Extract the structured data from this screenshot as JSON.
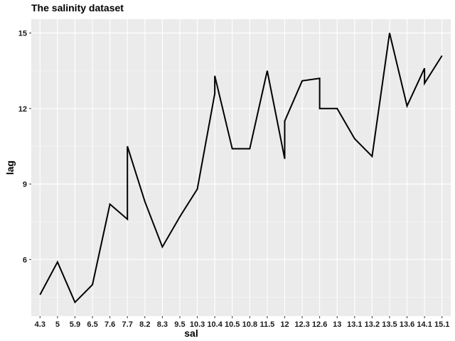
{
  "chart_data": {
    "type": "line",
    "title": "The salinity dataset",
    "xlabel": "sal",
    "ylabel": "lag",
    "categories": [
      "4.3",
      "5",
      "5.9",
      "6.5",
      "7.6",
      "7.7",
      "8.2",
      "8.3",
      "9.5",
      "10.3",
      "10.4",
      "10.5",
      "10.8",
      "11.5",
      "12",
      "12.3",
      "12.6",
      "13",
      "13.1",
      "13.2",
      "13.5",
      "13.6",
      "14.1",
      "15.1"
    ],
    "y_ticks": [
      6,
      9,
      12,
      15
    ],
    "ylim": [
      3.75,
      15.55
    ],
    "grid": true,
    "series": [
      {
        "color": "#000000",
        "points": [
          {
            "x": "4.3",
            "y": 4.6
          },
          {
            "x": "5",
            "y": 5.9
          },
          {
            "x": "5.9",
            "y": 4.3
          },
          {
            "x": "6.5",
            "y": 5.0
          },
          {
            "x": "7.6",
            "y": 8.2
          },
          {
            "x": "7.7",
            "y": 7.6
          },
          {
            "x": "7.7",
            "y": 10.5
          },
          {
            "x": "8.2",
            "y": 8.3
          },
          {
            "x": "8.3",
            "y": 6.5
          },
          {
            "x": "9.5",
            "y": 7.7
          },
          {
            "x": "10.3",
            "y": 8.8
          },
          {
            "x": "10.4",
            "y": 12.6
          },
          {
            "x": "10.4",
            "y": 13.3
          },
          {
            "x": "10.5",
            "y": 10.4
          },
          {
            "x": "10.8",
            "y": 10.4
          },
          {
            "x": "11.5",
            "y": 13.5
          },
          {
            "x": "12",
            "y": 10.0
          },
          {
            "x": "12",
            "y": 11.5
          },
          {
            "x": "12.3",
            "y": 13.1
          },
          {
            "x": "12.6",
            "y": 13.2
          },
          {
            "x": "12.6",
            "y": 12.0
          },
          {
            "x": "13",
            "y": 12.0
          },
          {
            "x": "13.1",
            "y": 10.8
          },
          {
            "x": "13.2",
            "y": 10.1
          },
          {
            "x": "13.5",
            "y": 15.0
          },
          {
            "x": "13.6",
            "y": 12.1
          },
          {
            "x": "14.1",
            "y": 13.6
          },
          {
            "x": "14.1",
            "y": 13.0
          },
          {
            "x": "15.1",
            "y": 14.1
          }
        ]
      }
    ]
  }
}
